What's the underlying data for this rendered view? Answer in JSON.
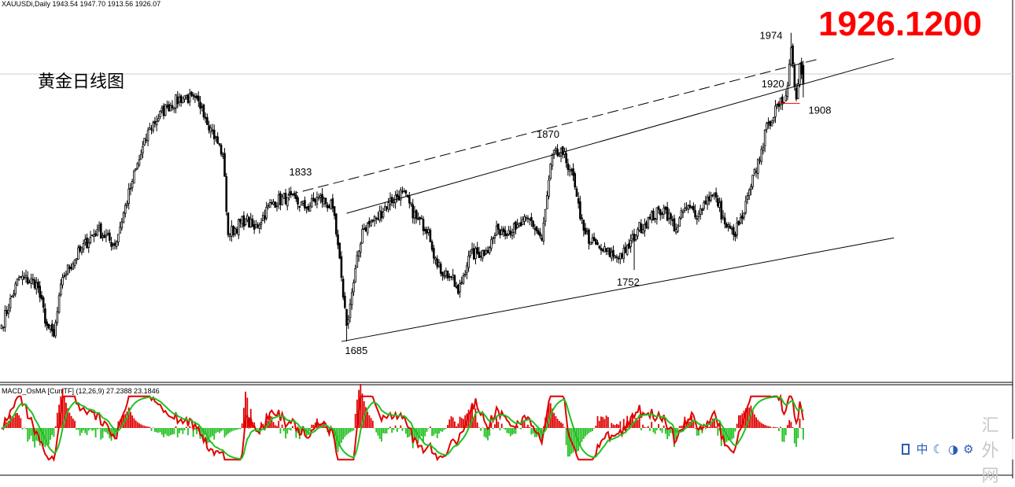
{
  "header": {
    "symbol_text": "XAUUSDi,Daily  1943.54 1947.70 1913.56 1926.07",
    "indicator_text": "MACD_OsMA [CurrTF] (12,26,9) 27.2388 23.1846"
  },
  "overlay": {
    "big_price": "1926.1200",
    "title_cn": "黄金日线图"
  },
  "colors": {
    "candle": "#000000",
    "histogram_up": "#e00000",
    "histogram_down": "#22c022",
    "macd_line": "#e00000",
    "signal_line": "#22c022",
    "support_line": "#ff0000",
    "big_price": "#ff0000"
  },
  "toolbar": {
    "icons": [
      "checkbox-icon",
      "chinese-input-icon",
      "moon-icon",
      "half-width-icon",
      "settings-icon"
    ],
    "zh_label": "中",
    "watermark": "汇外网"
  },
  "chart_data": [
    {
      "type": "candlestick",
      "title": "XAUUSDi,Daily",
      "ohlc_header": {
        "open": 1943.54,
        "high": 1947.7,
        "low": 1913.56,
        "close": 1926.07
      },
      "ylim": [
        1660,
        1990
      ],
      "annotations": [
        {
          "label": "1685",
          "value": 1685
        },
        {
          "label": "1833",
          "value": 1833
        },
        {
          "label": "1870",
          "value": 1870
        },
        {
          "label": "1752",
          "value": 1752
        },
        {
          "label": "1974",
          "value": 1974
        },
        {
          "label": "1920",
          "value": 1920
        },
        {
          "label": "1908",
          "value": 1908
        }
      ],
      "trendlines": [
        {
          "name": "channel-lower",
          "from": {
            "bar": 195,
            "value": 1685
          },
          "to": {
            "bar": 512,
            "value": 1782
          },
          "style": "solid"
        },
        {
          "name": "channel-middle",
          "from": {
            "bar": 198,
            "value": 1805
          },
          "to": {
            "bar": 512,
            "value": 1950
          },
          "style": "solid"
        },
        {
          "name": "channel-upper",
          "from": {
            "bar": 164,
            "value": 1822
          },
          "to": {
            "bar": 470,
            "value": 1950
          },
          "style": "dashed"
        },
        {
          "name": "support-1908",
          "from": {
            "bar": 445,
            "value": 1908
          },
          "to": {
            "bar": 458,
            "value": 1908
          },
          "style": "solid"
        }
      ],
      "bar_count": 460,
      "keypoints": [
        [
          0,
          1700
        ],
        [
          10,
          1745
        ],
        [
          20,
          1740
        ],
        [
          26,
          1700
        ],
        [
          30,
          1690
        ],
        [
          35,
          1745
        ],
        [
          45,
          1770
        ],
        [
          55,
          1790
        ],
        [
          65,
          1775
        ],
        [
          75,
          1835
        ],
        [
          85,
          1885
        ],
        [
          95,
          1905
        ],
        [
          105,
          1915
        ],
        [
          115,
          1905
        ],
        [
          120,
          1885
        ],
        [
          127,
          1860
        ],
        [
          130,
          1785
        ],
        [
          140,
          1800
        ],
        [
          145,
          1790
        ],
        [
          155,
          1815
        ],
        [
          164,
          1820
        ],
        [
          175,
          1810
        ],
        [
          182,
          1820
        ],
        [
          190,
          1810
        ],
        [
          195,
          1745
        ],
        [
          198,
          1700
        ],
        [
          202,
          1740
        ],
        [
          207,
          1790
        ],
        [
          215,
          1800
        ],
        [
          222,
          1815
        ],
        [
          230,
          1825
        ],
        [
          238,
          1800
        ],
        [
          245,
          1790
        ],
        [
          250,
          1755
        ],
        [
          258,
          1745
        ],
        [
          262,
          1730
        ],
        [
          268,
          1765
        ],
        [
          278,
          1770
        ],
        [
          285,
          1790
        ],
        [
          295,
          1790
        ],
        [
          303,
          1800
        ],
        [
          310,
          1780
        ],
        [
          316,
          1860
        ],
        [
          322,
          1860
        ],
        [
          327,
          1845
        ],
        [
          332,
          1800
        ],
        [
          338,
          1778
        ],
        [
          345,
          1770
        ],
        [
          352,
          1765
        ],
        [
          358,
          1768
        ],
        [
          365,
          1790
        ],
        [
          372,
          1800
        ],
        [
          380,
          1810
        ],
        [
          387,
          1790
        ],
        [
          392,
          1810
        ],
        [
          400,
          1805
        ],
        [
          405,
          1820
        ],
        [
          410,
          1820
        ],
        [
          415,
          1795
        ],
        [
          420,
          1785
        ],
        [
          425,
          1800
        ],
        [
          430,
          1830
        ],
        [
          436,
          1865
        ],
        [
          440,
          1890
        ],
        [
          446,
          1905
        ],
        [
          450,
          1915
        ],
        [
          453,
          1960
        ],
        [
          456,
          1912
        ],
        [
          458,
          1945
        ],
        [
          460,
          1926
        ]
      ]
    },
    {
      "type": "macd_osma",
      "title": "MACD_OsMA [CurrTF] (12,26,9)",
      "params": [
        12,
        26,
        9
      ],
      "values": {
        "main": 27.2388,
        "signal": 23.1846
      },
      "ylim": [
        -1.1,
        1.1
      ]
    }
  ]
}
